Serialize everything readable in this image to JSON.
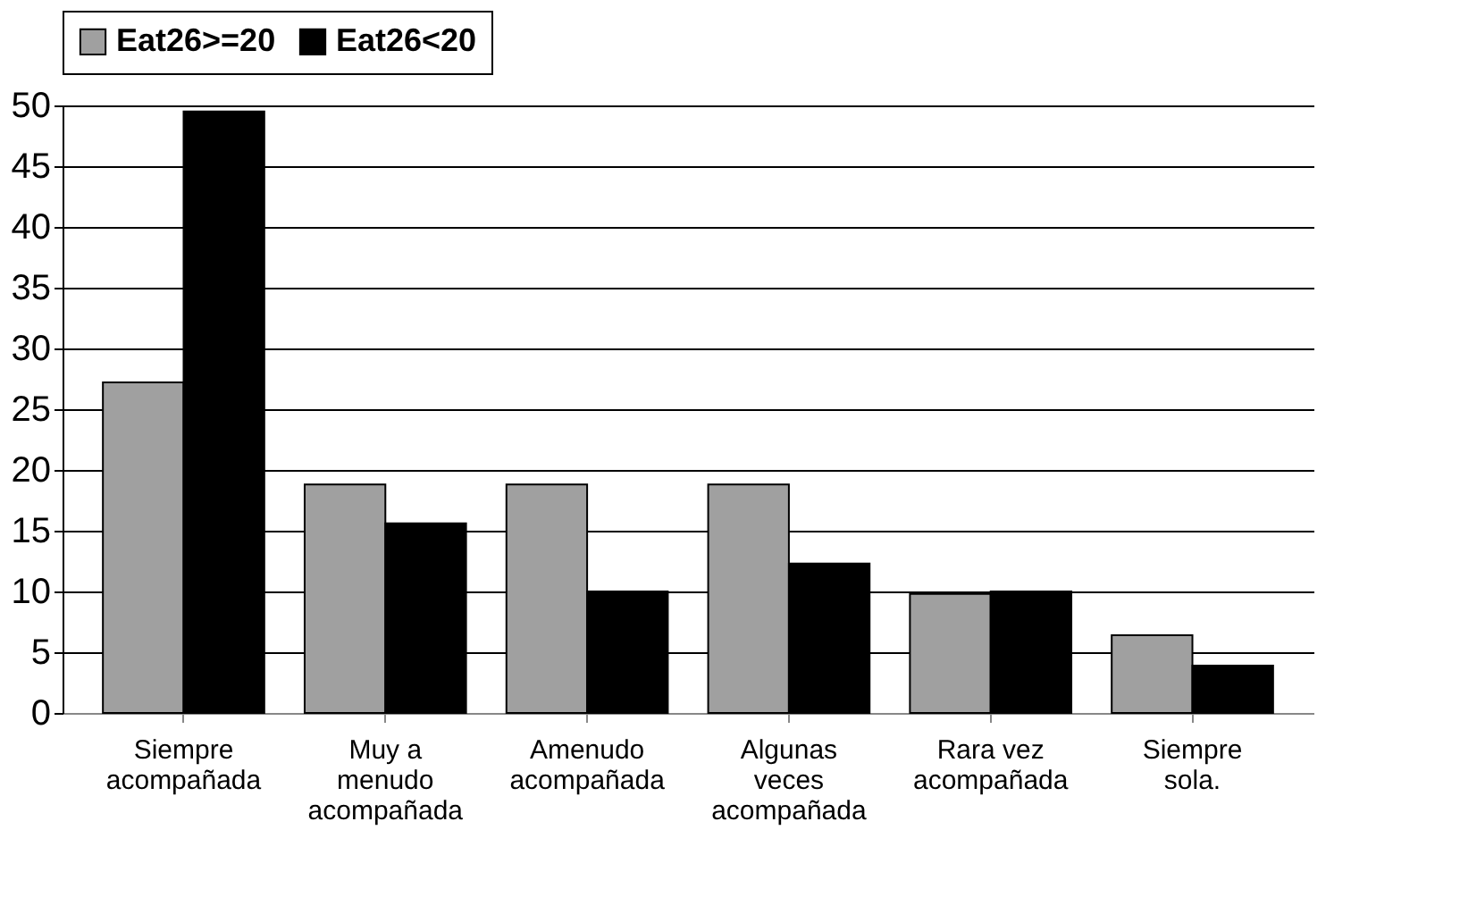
{
  "chart_data": {
    "type": "bar",
    "categories": [
      "Siempre acompañada",
      "Muy a menudo acompañada",
      "Amenudo acompañada",
      "Algunas veces acompañada",
      "Rara vez acompañada",
      "Siempre sola."
    ],
    "series": [
      {
        "name": "Eat26>=20",
        "color": "#a0a0a0",
        "values": [
          27.2,
          18.8,
          18.8,
          18.8,
          9.8,
          6.4
        ]
      },
      {
        "name": "Eat26<20",
        "color": "#000000",
        "values": [
          49.5,
          15.6,
          10,
          12.3,
          10,
          3.9
        ]
      }
    ],
    "ylim": [
      0,
      50
    ],
    "yticks": [
      0,
      5,
      10,
      15,
      20,
      25,
      30,
      35,
      40,
      45,
      50
    ],
    "grid": "y",
    "legend": "top"
  }
}
